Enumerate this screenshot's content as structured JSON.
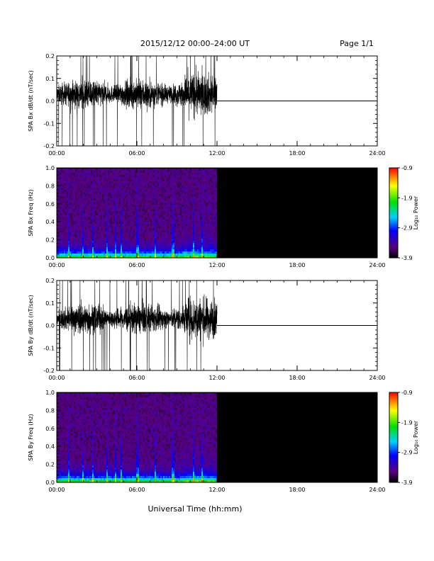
{
  "page": {
    "title": "2015/12/12  00:00–24:00 UT",
    "page_label": "Page 1/1",
    "xlabel": "Universal Time (hh:mm)"
  },
  "chart_data": [
    {
      "type": "line",
      "ylabel": "SPA Bx dB/dt (nT/sec)",
      "xlim": [
        "00:00",
        "24:00"
      ],
      "ylim": [
        -0.2,
        0.2
      ],
      "xticks": [
        "00:00",
        "06:00",
        "12:00",
        "18:00",
        "24:00"
      ],
      "yticks": [
        "-0.2",
        "-0.1",
        "0.0",
        "0.1",
        "0.2"
      ],
      "data_end": "12:00",
      "after_data_value": 0.0
    },
    {
      "type": "heatmap",
      "ylabel": "SPA Bx Freq (Hz)",
      "xlim": [
        "00:00",
        "24:00"
      ],
      "ylim": [
        0.0,
        1.0
      ],
      "xticks": [
        "00:00",
        "06:00",
        "12:00",
        "18:00",
        "24:00"
      ],
      "yticks": [
        "0.0",
        "0.2",
        "0.4",
        "0.6",
        "0.8",
        "1.0"
      ],
      "data_end": "12:00",
      "colorbar": {
        "label": "Log₁₀ Power",
        "ticks": [
          "-0.9",
          "-1.9",
          "-2.9",
          "-3.9"
        ],
        "range": [
          -3.9,
          -0.9
        ]
      }
    },
    {
      "type": "line",
      "ylabel": "SPA By dB/dt (nT/sec)",
      "xlim": [
        "00:00",
        "24:00"
      ],
      "ylim": [
        -0.2,
        0.2
      ],
      "xticks": [
        "00:00",
        "06:00",
        "12:00",
        "18:00",
        "24:00"
      ],
      "yticks": [
        "-0.2",
        "-0.1",
        "0.0",
        "0.1",
        "0.2"
      ],
      "data_end": "12:00",
      "after_data_value": 0.0
    },
    {
      "type": "heatmap",
      "ylabel": "SPA By Freq (Hz)",
      "xlim": [
        "00:00",
        "24:00"
      ],
      "ylim": [
        0.0,
        1.0
      ],
      "xticks": [
        "00:00",
        "06:00",
        "12:00",
        "18:00",
        "24:00"
      ],
      "yticks": [
        "0.0",
        "0.2",
        "0.4",
        "0.6",
        "0.8",
        "1.0"
      ],
      "data_end": "12:00",
      "colorbar": {
        "label": "Log₁₀ Power",
        "ticks": [
          "-0.9",
          "-1.9",
          "-2.9",
          "-3.9"
        ],
        "range": [
          -3.9,
          -0.9
        ]
      }
    }
  ]
}
